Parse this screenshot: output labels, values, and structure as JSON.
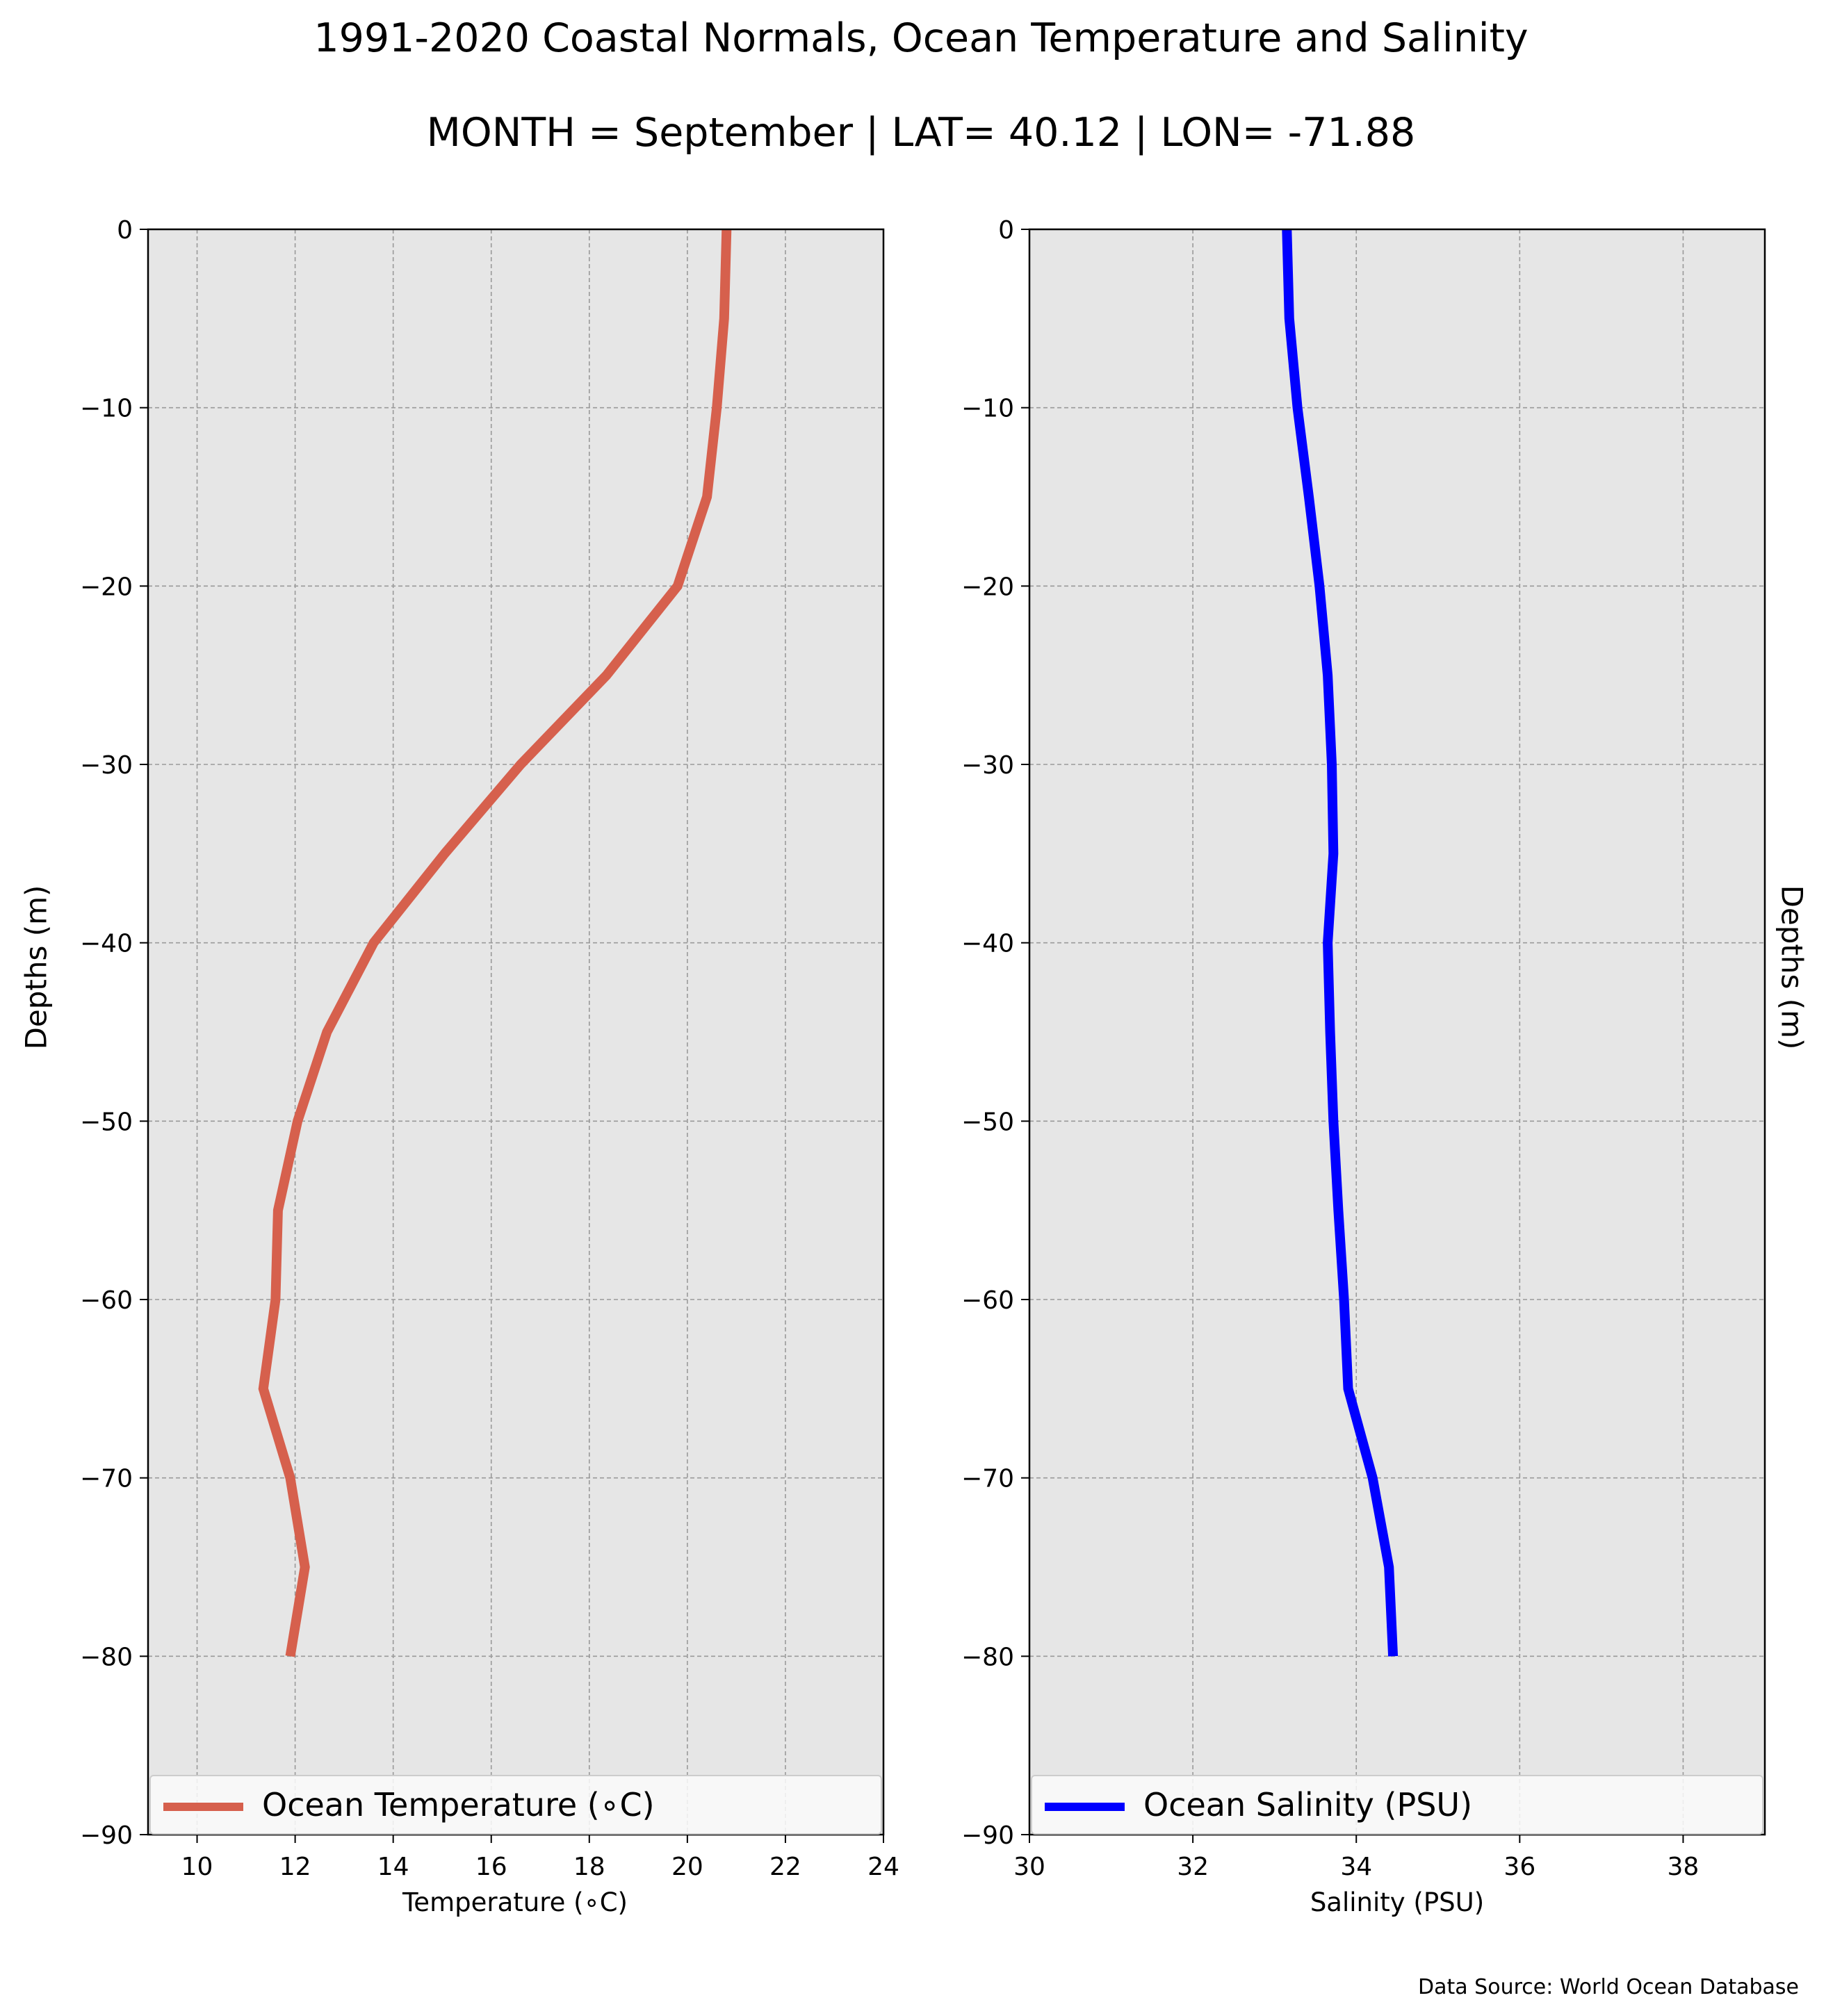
{
  "figure": {
    "title": "1991-2020 Coastal Normals, Ocean Temperature and Salinity",
    "subtitle": "MONTH = September | LAT= 40.12 | LON= -71.88",
    "ylabel": "Depths (m)",
    "ylabel_right": "Depths (m)",
    "source": "Data Source: World Ocean Database",
    "background_color": "#e6e6e6",
    "grid_color": "#9a9a9a"
  },
  "chart_data": [
    {
      "type": "line",
      "xlabel": "Temperature (∘C)",
      "ylabel": "Depths (m)",
      "xlim": [
        9,
        24
      ],
      "ylim": [
        -90,
        0
      ],
      "xticks": [
        10,
        12,
        14,
        16,
        18,
        20,
        22,
        24
      ],
      "xtick_labels": [
        "10",
        "12",
        "14",
        "16",
        "18",
        "20",
        "22",
        "24"
      ],
      "yticks": [
        0,
        -10,
        -20,
        -30,
        -40,
        -50,
        -60,
        -70,
        -80,
        -90
      ],
      "ytick_labels": [
        "0",
        "−10",
        "−20",
        "−30",
        "−40",
        "−50",
        "−60",
        "−70",
        "−80",
        "−90"
      ],
      "grid": true,
      "legend_position": "bottom",
      "series": [
        {
          "name": "Ocean Temperature (∘C)",
          "color": "#d6604d",
          "x": [
            20.8,
            20.75,
            20.6,
            20.4,
            19.8,
            18.35,
            16.6,
            15.05,
            13.6,
            12.65,
            12.05,
            11.65,
            11.6,
            11.35,
            11.9,
            12.2,
            11.9
          ],
          "y": [
            0,
            -5,
            -10,
            -15,
            -20,
            -25,
            -30,
            -35,
            -40,
            -45,
            -50,
            -55,
            -60,
            -65,
            -70,
            -75,
            -80
          ]
        }
      ]
    },
    {
      "type": "line",
      "xlabel": "Salinity (PSU)",
      "ylabel": "Depths (m)",
      "xlim": [
        30,
        39
      ],
      "ylim": [
        -90,
        0
      ],
      "xticks": [
        30,
        32,
        34,
        36,
        38
      ],
      "xtick_labels": [
        "30",
        "32",
        "34",
        "36",
        "38"
      ],
      "yticks": [
        0,
        -10,
        -20,
        -30,
        -40,
        -50,
        -60,
        -70,
        -80,
        -90
      ],
      "ytick_labels": [
        "0",
        "−10",
        "−20",
        "−30",
        "−40",
        "−50",
        "−60",
        "−70",
        "−80",
        "−90"
      ],
      "grid": true,
      "legend_position": "bottom",
      "series": [
        {
          "name": "Ocean Salinity (PSU)",
          "color": "#0000ff",
          "x": [
            33.15,
            33.18,
            33.28,
            33.42,
            33.55,
            33.65,
            33.7,
            33.72,
            33.65,
            33.68,
            33.72,
            33.78,
            33.85,
            33.9,
            34.2,
            34.4,
            34.45
          ],
          "y": [
            0,
            -5,
            -10,
            -15,
            -20,
            -25,
            -30,
            -35,
            -40,
            -45,
            -50,
            -55,
            -60,
            -65,
            -70,
            -75,
            -80
          ]
        }
      ]
    }
  ]
}
